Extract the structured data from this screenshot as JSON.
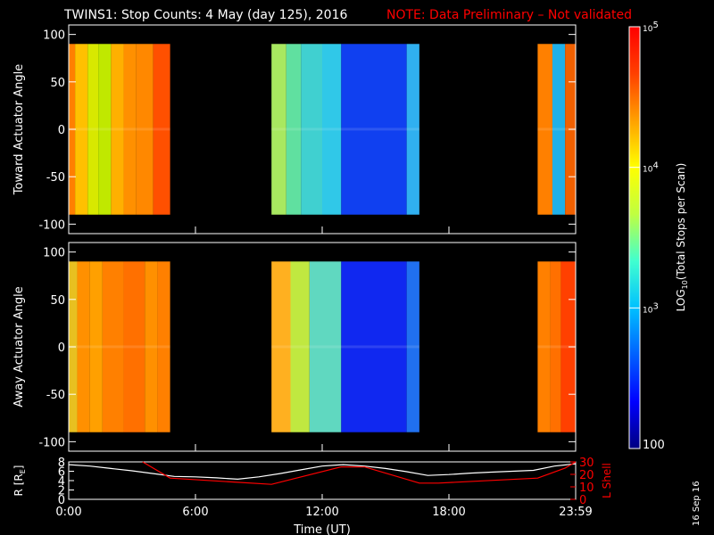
{
  "header": {
    "title": "TWINS1: Stop Counts:  4 May (day 125), 2016",
    "note": "NOTE: Data Preliminary – Not validated",
    "note_color": "#ff0000"
  },
  "stamp": "16 Sep 16",
  "chart_data": [
    {
      "type": "heatmap",
      "name": "toward",
      "ylabel": "Toward Actuator Angle",
      "ylim": [
        -110,
        110
      ],
      "yticks": [
        100,
        50,
        0,
        -50,
        -100
      ],
      "angle_range": [
        -90,
        90
      ],
      "x_range_hours": [
        0,
        24
      ],
      "data_intervals_hours": [
        [
          0.0,
          4.8
        ],
        [
          9.6,
          16.6
        ],
        [
          22.2,
          24.0
        ]
      ],
      "value_scale": "log",
      "column_colors": [
        {
          "start": 0.0,
          "end": 0.3,
          "color": "#ff7f00"
        },
        {
          "start": 0.3,
          "end": 0.9,
          "color": "#ffc000"
        },
        {
          "start": 0.9,
          "end": 1.4,
          "color": "#d8e800"
        },
        {
          "start": 1.4,
          "end": 2.0,
          "color": "#c0e800"
        },
        {
          "start": 2.0,
          "end": 2.6,
          "color": "#ffb000"
        },
        {
          "start": 2.6,
          "end": 3.2,
          "color": "#ff9000"
        },
        {
          "start": 3.2,
          "end": 4.0,
          "color": "#ff8800"
        },
        {
          "start": 4.0,
          "end": 4.8,
          "color": "#ff5000"
        },
        {
          "start": 9.6,
          "end": 10.3,
          "color": "#a8e860"
        },
        {
          "start": 10.3,
          "end": 11.0,
          "color": "#60e0a0"
        },
        {
          "start": 11.0,
          "end": 12.0,
          "color": "#40d0d0"
        },
        {
          "start": 12.0,
          "end": 12.9,
          "color": "#30c8e8"
        },
        {
          "start": 12.9,
          "end": 16.0,
          "color": "#1040f0"
        },
        {
          "start": 16.0,
          "end": 16.6,
          "color": "#30b0f0"
        },
        {
          "start": 22.2,
          "end": 22.9,
          "color": "#ff8000"
        },
        {
          "start": 22.9,
          "end": 23.5,
          "color": "#20b0e8"
        },
        {
          "start": 23.5,
          "end": 24.0,
          "color": "#f06000"
        }
      ]
    },
    {
      "type": "heatmap",
      "name": "away",
      "ylabel": "Away Actuator Angle",
      "ylim": [
        -110,
        110
      ],
      "yticks": [
        100,
        50,
        0,
        -50,
        -100
      ],
      "angle_range": [
        -90,
        90
      ],
      "x_range_hours": [
        0,
        24
      ],
      "data_intervals_hours": [
        [
          0.0,
          4.8
        ],
        [
          9.6,
          16.6
        ],
        [
          22.2,
          24.0
        ]
      ],
      "value_scale": "log",
      "column_colors": [
        {
          "start": 0.0,
          "end": 0.4,
          "color": "#e8c020"
        },
        {
          "start": 0.4,
          "end": 1.0,
          "color": "#ff9000"
        },
        {
          "start": 1.0,
          "end": 1.6,
          "color": "#ffa000"
        },
        {
          "start": 1.6,
          "end": 2.6,
          "color": "#ff8000"
        },
        {
          "start": 2.6,
          "end": 3.6,
          "color": "#ff7000"
        },
        {
          "start": 3.6,
          "end": 4.2,
          "color": "#ff9000"
        },
        {
          "start": 4.2,
          "end": 4.8,
          "color": "#ff8000"
        },
        {
          "start": 9.6,
          "end": 10.5,
          "color": "#ffb020"
        },
        {
          "start": 10.5,
          "end": 11.4,
          "color": "#c0e840"
        },
        {
          "start": 11.4,
          "end": 12.9,
          "color": "#60d8c0"
        },
        {
          "start": 12.9,
          "end": 16.0,
          "color": "#1028f0"
        },
        {
          "start": 16.0,
          "end": 16.6,
          "color": "#2070f0"
        },
        {
          "start": 22.2,
          "end": 22.8,
          "color": "#ff8000"
        },
        {
          "start": 22.8,
          "end": 23.3,
          "color": "#ff7000"
        },
        {
          "start": 23.3,
          "end": 24.0,
          "color": "#ff4000"
        }
      ]
    },
    {
      "type": "line",
      "name": "orbit",
      "ylabel": "R [R",
      "ylabel_sub": "E",
      "ylabel_end": "]",
      "ylim": [
        0,
        8
      ],
      "yticks": [
        0,
        2,
        4,
        6,
        8
      ],
      "y2label": "L Shell",
      "y2lim": [
        0,
        30
      ],
      "y2ticks": [
        0,
        10,
        20,
        30
      ],
      "xlabel": "Time (UT)",
      "xticks": [
        {
          "value": 0,
          "label": "0:00"
        },
        {
          "value": 6,
          "label": "6:00"
        },
        {
          "value": 12,
          "label": "12:00"
        },
        {
          "value": 18,
          "label": "18:00"
        },
        {
          "value": 24,
          "label": "23:59"
        }
      ],
      "series": [
        {
          "axis": "left",
          "color": "#ffffff",
          "x": [
            0,
            1,
            2,
            3,
            4,
            5,
            6,
            7,
            8,
            9,
            10,
            11,
            12,
            13,
            14,
            15,
            16,
            17,
            18,
            19,
            20,
            21,
            22,
            23,
            24
          ],
          "y": [
            7.4,
            7.1,
            6.6,
            6.1,
            5.5,
            4.9,
            4.8,
            4.6,
            4.3,
            4.8,
            5.5,
            6.3,
            7.1,
            7.4,
            7.1,
            6.6,
            5.9,
            5.1,
            5.3,
            5.6,
            5.8,
            6.0,
            6.2,
            7.1,
            7.6
          ]
        },
        {
          "axis": "right",
          "color": "#ff0000",
          "x": [
            3.5,
            4.8,
            9.6,
            12.9,
            14.0,
            16.6,
            17.5,
            22.2,
            23.5,
            24
          ],
          "y": [
            30,
            17,
            12,
            26,
            26,
            13,
            13,
            17,
            25,
            30
          ]
        }
      ]
    }
  ],
  "colorbar": {
    "label_pre": "LOG",
    "label_sub": "10",
    "label_post": "(Total Stops per Scan)",
    "range": [
      100,
      100000
    ],
    "scale": "log",
    "ticks": [
      {
        "value": 100000,
        "base": "10",
        "exp": "5"
      },
      {
        "value": 10000,
        "base": "10",
        "exp": "4"
      },
      {
        "value": 1000,
        "base": "10",
        "exp": "3"
      },
      {
        "value": 100,
        "label": "100"
      }
    ],
    "colors": [
      "#000080",
      "#0000ff",
      "#0060ff",
      "#00c0ff",
      "#40ffd0",
      "#c0ff40",
      "#ffff00",
      "#ffa000",
      "#ff4000",
      "#ff0000"
    ]
  }
}
